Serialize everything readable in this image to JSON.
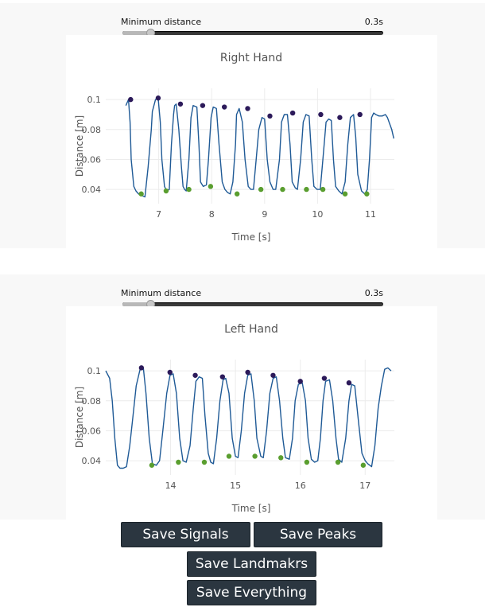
{
  "panels": [
    {
      "slider": {
        "label": "Minimum distance",
        "value_text": "0.3s",
        "value_fraction": 0.11
      },
      "chart_data": {
        "type": "line",
        "title": "Right Hand",
        "xlabel": "Time [s]",
        "ylabel": "Distance [m]",
        "xlim": [
          6.0,
          11.45
        ],
        "ylim": [
          0.0305,
          0.1075
        ],
        "xticks": [
          7,
          8,
          9,
          10,
          11
        ],
        "xtick_labels": [
          "7",
          "8",
          "9",
          "10",
          "11"
        ],
        "yticks": [
          0.04,
          0.06,
          0.08,
          0.1
        ],
        "ytick_labels": [
          "0.04",
          "0.06",
          "0.08",
          "0.1"
        ],
        "line_color": "#1f5a96",
        "peak_color": "#2c1a5a",
        "valley_color": "#5a9e2f",
        "series": [
          {
            "name": "signal",
            "x": [
              6.38,
              6.43,
              6.46,
              6.48,
              6.53,
              6.57,
              6.62,
              6.68,
              6.74,
              6.8,
              6.86,
              6.88,
              6.94,
              6.99,
              7.03,
              7.06,
              7.11,
              7.15,
              7.2,
              7.24,
              7.28,
              7.3,
              7.33,
              7.38,
              7.43,
              7.46,
              7.49,
              7.52,
              7.57,
              7.61,
              7.65,
              7.72,
              7.76,
              7.79,
              7.84,
              7.9,
              7.94,
              7.99,
              8.03,
              8.09,
              8.14,
              8.2,
              8.25,
              8.3,
              8.35,
              8.4,
              8.45,
              8.47,
              8.52,
              8.58,
              8.63,
              8.69,
              8.74,
              8.79,
              8.84,
              8.89,
              8.95,
              9.0,
              9.05,
              9.1,
              9.16,
              9.21,
              9.28,
              9.32,
              9.37,
              9.43,
              9.48,
              9.52,
              9.58,
              9.62,
              9.68,
              9.73,
              9.78,
              9.84,
              9.89,
              9.93,
              9.99,
              10.05,
              10.1,
              10.16,
              10.21,
              10.26,
              10.3,
              10.34,
              10.4,
              10.46,
              10.52,
              10.57,
              10.62,
              10.68,
              10.72,
              10.76,
              10.83,
              10.89,
              10.94,
              10.98,
              11.02,
              11.06,
              11.1,
              11.16,
              11.22,
              11.28,
              11.32,
              11.35,
              11.4,
              11.44
            ],
            "y": [
              0.096,
              0.1,
              0.085,
              0.06,
              0.042,
              0.039,
              0.037,
              0.036,
              0.035,
              0.055,
              0.08,
              0.092,
              0.1,
              0.101,
              0.085,
              0.06,
              0.042,
              0.039,
              0.04,
              0.07,
              0.09,
              0.096,
              0.097,
              0.08,
              0.055,
              0.042,
              0.04,
              0.039,
              0.06,
              0.088,
              0.096,
              0.095,
              0.07,
              0.045,
              0.042,
              0.043,
              0.06,
              0.088,
              0.095,
              0.094,
              0.07,
              0.045,
              0.04,
              0.038,
              0.037,
              0.045,
              0.07,
              0.09,
              0.094,
              0.085,
              0.06,
              0.042,
              0.04,
              0.04,
              0.06,
              0.08,
              0.088,
              0.087,
              0.06,
              0.045,
              0.04,
              0.04,
              0.06,
              0.085,
              0.09,
              0.09,
              0.07,
              0.045,
              0.041,
              0.04,
              0.06,
              0.085,
              0.09,
              0.089,
              0.06,
              0.042,
              0.04,
              0.04,
              0.06,
              0.085,
              0.087,
              0.086,
              0.06,
              0.042,
              0.039,
              0.037,
              0.045,
              0.07,
              0.088,
              0.09,
              0.075,
              0.05,
              0.039,
              0.037,
              0.04,
              0.06,
              0.088,
              0.091,
              0.09,
              0.089,
              0.089,
              0.09,
              0.088,
              0.085,
              0.08,
              0.074
            ]
          },
          {
            "name": "peaks",
            "x": [
              6.47,
              6.99,
              7.41,
              7.83,
              8.24,
              8.68,
              9.1,
              9.53,
              10.06,
              10.42,
              10.8
            ],
            "y": [
              0.1,
              0.101,
              0.097,
              0.096,
              0.095,
              0.094,
              0.089,
              0.091,
              0.09,
              0.088,
              0.09
            ]
          },
          {
            "name": "valleys",
            "x": [
              6.67,
              7.14,
              7.57,
              7.98,
              8.48,
              8.93,
              9.34,
              9.79,
              10.1,
              10.52,
              10.93
            ],
            "y": [
              0.037,
              0.039,
              0.04,
              0.042,
              0.037,
              0.04,
              0.04,
              0.04,
              0.04,
              0.037,
              0.037
            ]
          }
        ]
      }
    },
    {
      "slider": {
        "label": "Minimum distance",
        "value_text": "0.3s",
        "value_fraction": 0.11
      },
      "chart_data": {
        "type": "line",
        "title": "Left Hand",
        "xlabel": "Time [s]",
        "ylabel": "Distance [m]",
        "xlim": [
          13.0,
          17.45
        ],
        "ylim": [
          0.0305,
          0.1075
        ],
        "xticks": [
          14,
          15,
          16,
          17
        ],
        "xtick_labels": [
          "14",
          "15",
          "16",
          "17"
        ],
        "yticks": [
          0.04,
          0.06,
          0.08,
          0.1
        ],
        "ytick_labels": [
          "0.04",
          "0.06",
          "0.08",
          "0.1"
        ],
        "line_color": "#1f5a96",
        "peak_color": "#2c1a5a",
        "valley_color": "#5a9e2f",
        "series": [
          {
            "name": "signal",
            "x": [
              13.0,
              13.06,
              13.1,
              13.14,
              13.18,
              13.22,
              13.27,
              13.32,
              13.37,
              13.42,
              13.47,
              13.53,
              13.58,
              13.62,
              13.67,
              13.72,
              13.78,
              13.83,
              13.88,
              13.94,
              13.99,
              14.04,
              14.09,
              14.14,
              14.19,
              14.24,
              14.3,
              14.35,
              14.39,
              14.44,
              14.49,
              14.53,
              14.58,
              14.62,
              14.66,
              14.71,
              14.76,
              14.81,
              14.85,
              14.9,
              14.95,
              15.0,
              15.04,
              15.09,
              15.14,
              15.19,
              15.24,
              15.29,
              15.33,
              15.39,
              15.43,
              15.48,
              15.53,
              15.58,
              15.63,
              15.68,
              15.73,
              15.77,
              15.83,
              15.88,
              15.92,
              15.97,
              16.03,
              16.08,
              16.12,
              16.17,
              16.22,
              16.27,
              16.31,
              16.35,
              16.39,
              16.45,
              16.5,
              16.55,
              16.59,
              16.64,
              16.7,
              16.75,
              16.79,
              16.84,
              16.9,
              16.95,
              17.0,
              17.04,
              17.1,
              17.15,
              17.2,
              17.25,
              17.3,
              17.35,
              17.4
            ],
            "y": [
              0.1,
              0.095,
              0.08,
              0.055,
              0.037,
              0.035,
              0.035,
              0.036,
              0.05,
              0.07,
              0.09,
              0.101,
              0.102,
              0.085,
              0.055,
              0.038,
              0.037,
              0.04,
              0.06,
              0.085,
              0.097,
              0.098,
              0.085,
              0.055,
              0.04,
              0.039,
              0.05,
              0.075,
              0.093,
              0.096,
              0.095,
              0.07,
              0.045,
              0.039,
              0.038,
              0.055,
              0.08,
              0.094,
              0.095,
              0.085,
              0.055,
              0.043,
              0.042,
              0.06,
              0.085,
              0.097,
              0.098,
              0.08,
              0.055,
              0.043,
              0.042,
              0.06,
              0.085,
              0.095,
              0.096,
              0.08,
              0.055,
              0.042,
              0.041,
              0.055,
              0.08,
              0.091,
              0.092,
              0.08,
              0.055,
              0.041,
              0.039,
              0.04,
              0.055,
              0.08,
              0.093,
              0.094,
              0.08,
              0.055,
              0.041,
              0.039,
              0.055,
              0.08,
              0.091,
              0.09,
              0.065,
              0.045,
              0.04,
              0.038,
              0.036,
              0.05,
              0.075,
              0.09,
              0.101,
              0.102,
              0.1
            ]
          },
          {
            "name": "peaks",
            "x": [
              13.55,
              13.99,
              14.38,
              14.8,
              15.19,
              15.58,
              16.0,
              16.37,
              16.75
            ],
            "y": [
              0.102,
              0.099,
              0.097,
              0.096,
              0.099,
              0.097,
              0.093,
              0.095,
              0.092
            ]
          },
          {
            "name": "valleys",
            "x": [
              13.71,
              14.12,
              14.52,
              14.9,
              15.3,
              15.7,
              16.1,
              16.58,
              16.97
            ],
            "y": [
              0.037,
              0.039,
              0.039,
              0.043,
              0.043,
              0.042,
              0.039,
              0.039,
              0.037
            ]
          }
        ]
      }
    }
  ],
  "buttons": {
    "save_signals": "Save Signals",
    "save_peaks": "Save Peaks",
    "save_landmarks": "Save Landmakrs",
    "save_everything": "Save Everything"
  }
}
